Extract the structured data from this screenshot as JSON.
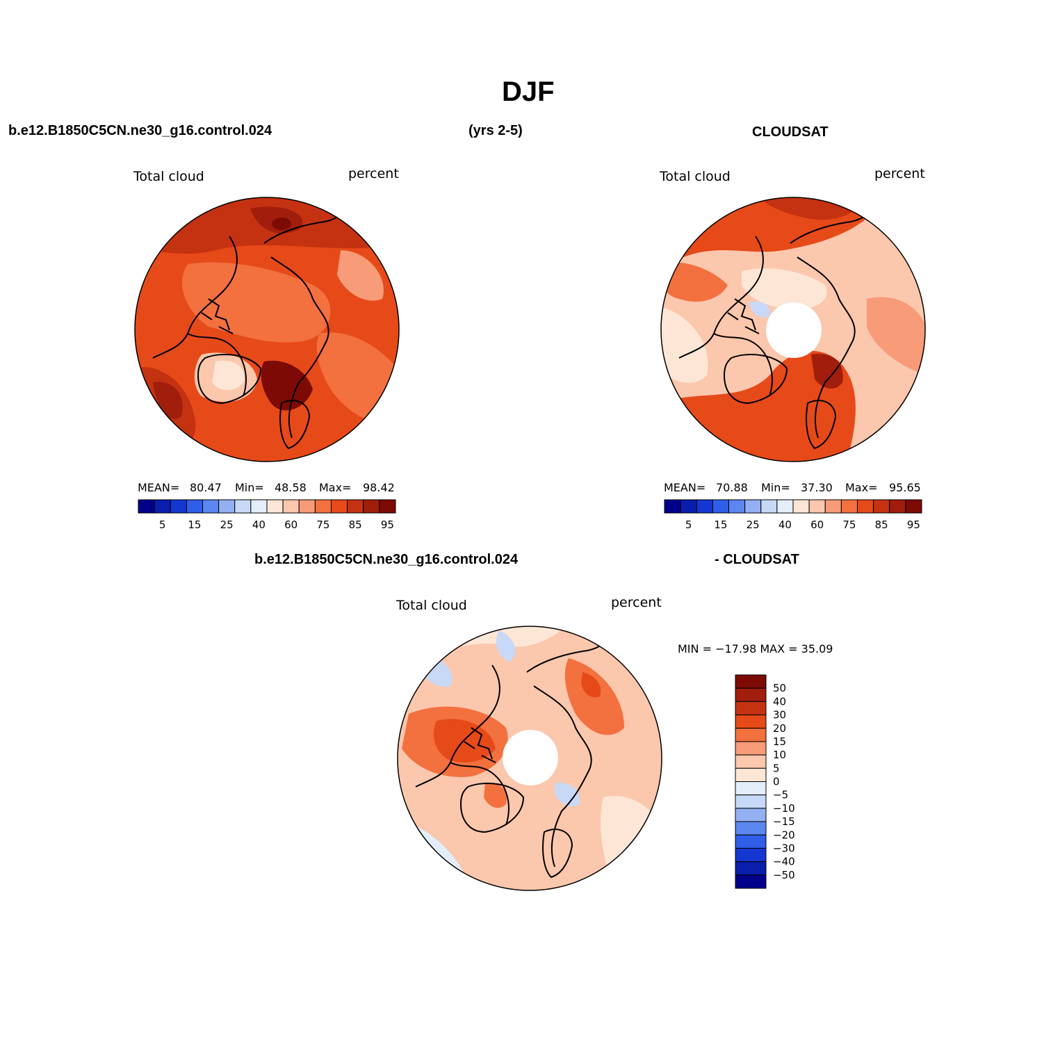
{
  "title": "DJF",
  "top_row": {
    "left_header": "b.e12.B1850C5CN.ne30_g16.control.024",
    "center_header": "(yrs 2-5)",
    "right_header": "CLOUDSAT"
  },
  "bottom_row": {
    "left_header": "b.e12.B1850C5CN.ne30_g16.control.024",
    "right_header": "- CLOUDSAT"
  },
  "panels": {
    "model": {
      "variable": "Total cloud",
      "units": "percent",
      "mean_label": "MEAN=",
      "mean": "80.47",
      "min_label": "Min=",
      "min": "48.58",
      "max_label": "Max=",
      "max": "98.42"
    },
    "obs": {
      "variable": "Total cloud",
      "units": "percent",
      "mean_label": "MEAN=",
      "mean": "70.88",
      "min_label": "Min=",
      "min": "37.30",
      "max_label": "Max=",
      "max": "95.65"
    },
    "diff": {
      "variable": "Total cloud",
      "units": "percent",
      "minmax_text": "MIN = −17.98 MAX =  35.09"
    }
  },
  "colorbar_abs": {
    "tick_labels": [
      "5",
      "15",
      "25",
      "40",
      "60",
      "75",
      "85",
      "95"
    ],
    "colors": [
      "#00008b",
      "#0a1ead",
      "#1437d2",
      "#2f5ee8",
      "#5d87f0",
      "#93b0f3",
      "#c8d9f7",
      "#e3eefa",
      "#fde6d5",
      "#fbc7ad",
      "#f89b78",
      "#f3703f",
      "#e64a19",
      "#c43212",
      "#a01e0b",
      "#7d0a05"
    ]
  },
  "colorbar_diff": {
    "tick_labels": [
      "50",
      "40",
      "30",
      "20",
      "15",
      "10",
      "5",
      "0",
      "−5",
      "−10",
      "−15",
      "−20",
      "−30",
      "−40",
      "−50"
    ],
    "colors": [
      "#7d0a05",
      "#a01e0b",
      "#c43212",
      "#e64a19",
      "#f3703f",
      "#f89b78",
      "#fbc7ad",
      "#fde6d5",
      "#e3eefa",
      "#c8d9f7",
      "#93b0f3",
      "#5d87f0",
      "#2f5ee8",
      "#1437d2",
      "#0a1ead",
      "#00008b"
    ]
  }
}
